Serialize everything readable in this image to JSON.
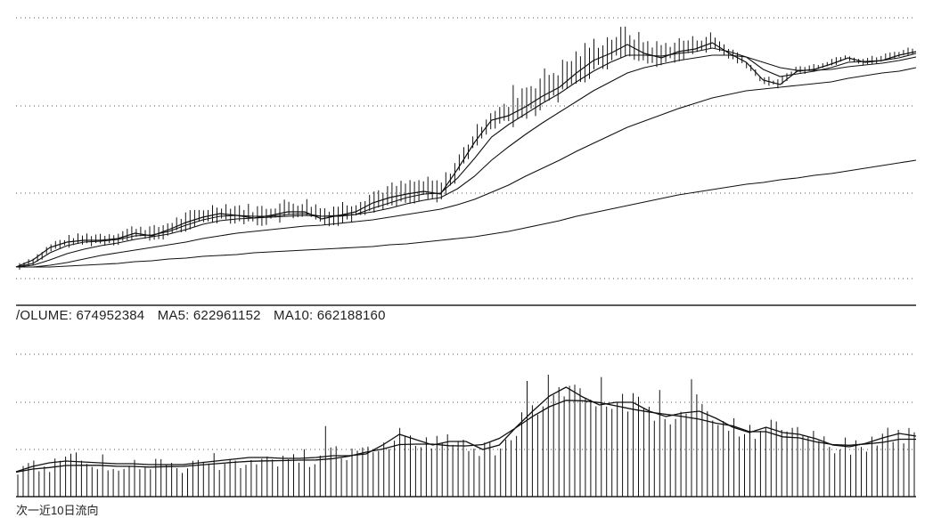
{
  "price_panel": {
    "gridlines": "dotted",
    "series_count": 5,
    "candles": "high-low bars"
  },
  "volume_panel": {
    "label": {
      "volume": "/OLUME: 674952384",
      "ma5": "MA5: 622961152",
      "ma10": "MA10: 662188160"
    },
    "gridlines": "dotted"
  },
  "caption": "次一近10日流向",
  "colors": {
    "ink": "#222222",
    "grid": "#555555",
    "background": "#ffffff"
  },
  "chart_data": [
    {
      "type": "line",
      "panel": "price",
      "series": [
        {
          "values": [
            300,
            292,
            278,
            272,
            270,
            270,
            268,
            262,
            265,
            258,
            250,
            244,
            240,
            242,
            245,
            242,
            238,
            238,
            246,
            242,
            238,
            228,
            222,
            218,
            215,
            218,
            190,
            160,
            135,
            130,
            120,
            108,
            98,
            82,
            68,
            60,
            50,
            60,
            65,
            58,
            55,
            48,
            60,
            70,
            90,
            95,
            80,
            78,
            72,
            65,
            70,
            68,
            62,
            58
          ]
        },
        {
          "values": [
            300,
            296,
            284,
            276,
            272,
            271,
            269,
            265,
            264,
            260,
            253,
            247,
            243,
            242,
            243,
            243,
            241,
            240,
            243,
            243,
            241,
            234,
            228,
            222,
            218,
            217,
            200,
            178,
            154,
            140,
            128,
            116,
            105,
            92,
            80,
            70,
            62,
            62,
            63,
            60,
            58,
            54,
            58,
            64,
            78,
            86,
            83,
            80,
            76,
            70,
            69,
            68,
            65,
            60
          ]
        },
        {
          "values": [
            300,
            298,
            292,
            285,
            280,
            276,
            273,
            269,
            266,
            263,
            258,
            252,
            248,
            246,
            245,
            244,
            243,
            242,
            243,
            242,
            241,
            238,
            234,
            229,
            225,
            222,
            212,
            198,
            180,
            165,
            151,
            138,
            126,
            114,
            102,
            92,
            82,
            76,
            72,
            68,
            65,
            62,
            62,
            64,
            70,
            76,
            79,
            79,
            78,
            75,
            73,
            71,
            68,
            64
          ]
        },
        {
          "values": [
            300,
            300,
            298,
            295,
            291,
            287,
            284,
            281,
            278,
            275,
            272,
            268,
            265,
            262,
            260,
            258,
            256,
            254,
            253,
            251,
            249,
            247,
            244,
            241,
            238,
            235,
            230,
            224,
            216,
            208,
            198,
            189,
            180,
            170,
            161,
            152,
            143,
            136,
            129,
            122,
            116,
            110,
            106,
            102,
            100,
            98,
            96,
            94,
            92,
            88,
            85,
            82,
            80,
            76
          ]
        },
        {
          "values": [
            300,
            300,
            300,
            299,
            298,
            297,
            296,
            294,
            293,
            291,
            290,
            288,
            287,
            286,
            284,
            283,
            282,
            281,
            280,
            279,
            278,
            277,
            275,
            274,
            272,
            270,
            268,
            266,
            263,
            260,
            256,
            252,
            248,
            243,
            239,
            235,
            231,
            227,
            223,
            219,
            216,
            213,
            210,
            207,
            205,
            202,
            200,
            197,
            195,
            192,
            189,
            186,
            183,
            180
          ]
        }
      ]
    },
    {
      "type": "bar",
      "panel": "volume",
      "values": [
        674952384
      ],
      "ma5": 622961152,
      "ma10": 662188160
    }
  ]
}
